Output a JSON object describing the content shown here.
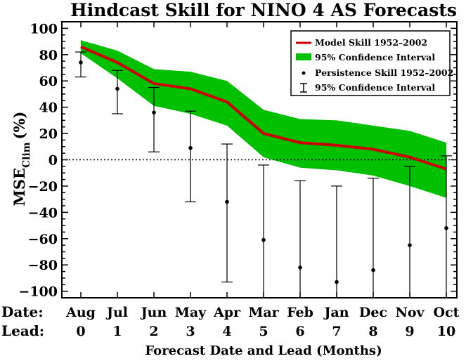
{
  "chart_data": {
    "type": "line",
    "title": "Hindcast Skill for NINO 4 AS Forecasts",
    "xlabel": "Forecast Date and Lead (Months)",
    "ylabel": "MSE",
    "ylabel_subscript": "Clim",
    "ylabel_unit": "(%)",
    "row_labels": {
      "date": "Date:",
      "lead": "Lead:"
    },
    "x": [
      0,
      1,
      2,
      3,
      4,
      5,
      6,
      7,
      8,
      9,
      10
    ],
    "dates": [
      "Aug",
      "Jul",
      "Jun",
      "May",
      "Apr",
      "Mar",
      "Feb",
      "Jan",
      "Dec",
      "Nov",
      "Oct"
    ],
    "leads": [
      "0",
      "1",
      "2",
      "3",
      "4",
      "5",
      "6",
      "7",
      "8",
      "9",
      "10"
    ],
    "ylim": [
      -105,
      105
    ],
    "yticks": [
      100,
      80,
      60,
      40,
      20,
      0,
      -20,
      -40,
      -60,
      -80,
      -100
    ],
    "zero_line": "dotted",
    "grid": false,
    "legend_position": "top-right",
    "series": [
      {
        "name": "Model Skill 1952–2002",
        "kind": "line",
        "color": "#cc0000",
        "values": [
          86,
          74,
          58,
          54,
          44,
          20,
          13,
          11,
          8,
          2,
          -7
        ]
      },
      {
        "name": "95% Confidence Interval",
        "kind": "band",
        "color": "#00c000",
        "upper": [
          91,
          83,
          69,
          67,
          60,
          38,
          31,
          30,
          26,
          22,
          13
        ],
        "lower": [
          81,
          62,
          41,
          35,
          26,
          2,
          -6,
          -8,
          -12,
          -20,
          -29
        ]
      },
      {
        "name": "Persistence Skill 1952–2002",
        "kind": "points",
        "color": "#000000",
        "values": [
          74,
          54,
          36,
          9,
          -32,
          -61,
          -82,
          -93,
          -84,
          -65,
          -52
        ]
      },
      {
        "name": "95% Confidence Interval",
        "kind": "errorbars",
        "color": "#000000",
        "upper": [
          82,
          68,
          55,
          37,
          12,
          -4,
          -16,
          -20,
          -14,
          -5,
          3
        ],
        "lower": [
          63,
          35,
          6,
          -32,
          -93,
          -105,
          -105,
          -105,
          -105,
          -105,
          -105
        ]
      }
    ]
  }
}
